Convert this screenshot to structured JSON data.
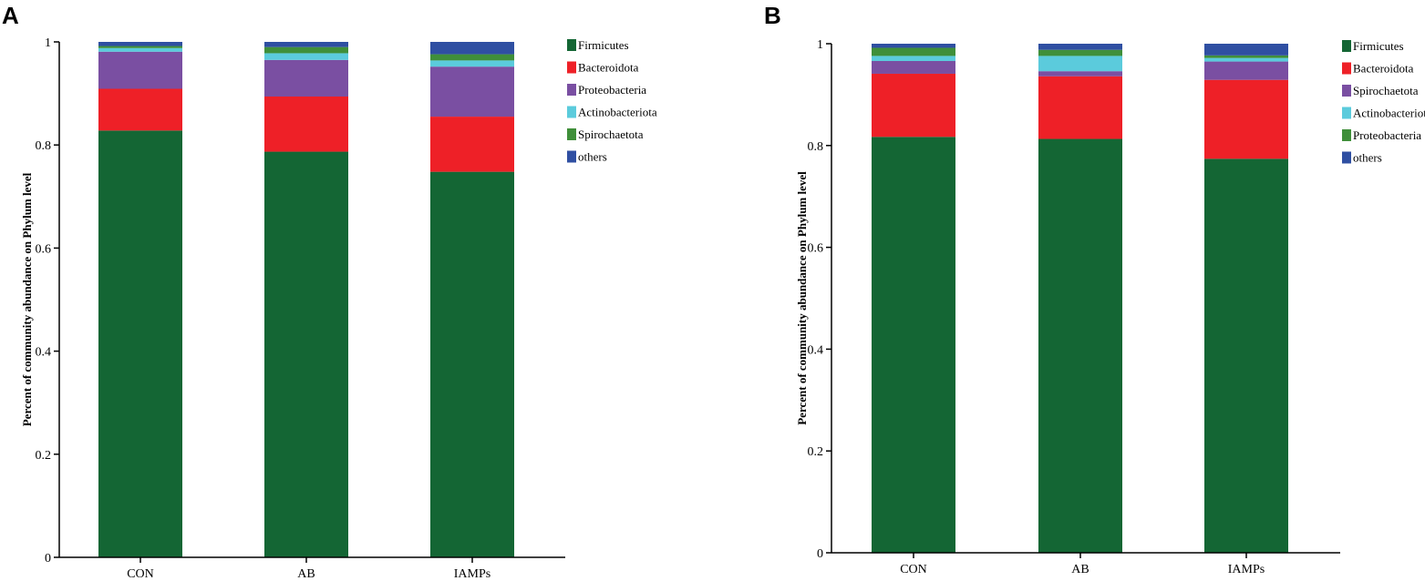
{
  "chart_data": [
    {
      "panel": "A",
      "type": "bar",
      "stacked": true,
      "title": "",
      "xlabel": "",
      "ylabel": "Percent of community abundance on Phylum level",
      "ylim": [
        0,
        1
      ],
      "yticks": [
        0,
        0.2,
        0.4,
        0.6,
        0.8,
        1
      ],
      "ytick_labels": [
        "0",
        "0.2",
        "0.4",
        "0.6",
        "0.8",
        "1"
      ],
      "categories": [
        "CON",
        "AB",
        "IAMPs"
      ],
      "legend_position": "right",
      "series": [
        {
          "name": "Firmicutes",
          "color": "#146634",
          "values": [
            0.828,
            0.787,
            0.748
          ]
        },
        {
          "name": "Bacteroidota",
          "color": "#ee2027",
          "values": [
            0.081,
            0.107,
            0.107
          ]
        },
        {
          "name": "Proteobacteria",
          "color": "#7a4fa2",
          "values": [
            0.072,
            0.071,
            0.097
          ]
        },
        {
          "name": "Actinobacteriota",
          "color": "#5bcbdc",
          "values": [
            0.007,
            0.013,
            0.012
          ]
        },
        {
          "name": "Spirochaetota",
          "color": "#3f8f3a",
          "values": [
            0.004,
            0.012,
            0.012
          ]
        },
        {
          "name": "others",
          "color": "#2f4fa2",
          "values": [
            0.008,
            0.01,
            0.024
          ]
        }
      ]
    },
    {
      "panel": "B",
      "type": "bar",
      "stacked": true,
      "title": "",
      "xlabel": "",
      "ylabel": "Percent of community abundance on Phylum level",
      "ylim": [
        0,
        1
      ],
      "yticks": [
        0,
        0.2,
        0.4,
        0.6,
        0.8,
        1
      ],
      "ytick_labels": [
        "0",
        "0.2",
        "0.4",
        "0.6",
        "0.8",
        "1"
      ],
      "categories": [
        "CON",
        "AB",
        "IAMPs"
      ],
      "legend_position": "right",
      "series": [
        {
          "name": "Firmicutes",
          "color": "#146634",
          "values": [
            0.817,
            0.813,
            0.774
          ]
        },
        {
          "name": "Bacteroidota",
          "color": "#ee2027",
          "values": [
            0.124,
            0.123,
            0.155
          ]
        },
        {
          "name": "Spirochaetota",
          "color": "#7a4fa2",
          "values": [
            0.025,
            0.01,
            0.036
          ]
        },
        {
          "name": "Actinobacteriota",
          "color": "#5bcbdc",
          "values": [
            0.01,
            0.03,
            0.007
          ]
        },
        {
          "name": "Proteobacteria",
          "color": "#3f8f3a",
          "values": [
            0.016,
            0.012,
            0.005
          ]
        },
        {
          "name": "others",
          "color": "#2f4fa2",
          "values": [
            0.008,
            0.012,
            0.023
          ]
        }
      ]
    }
  ]
}
